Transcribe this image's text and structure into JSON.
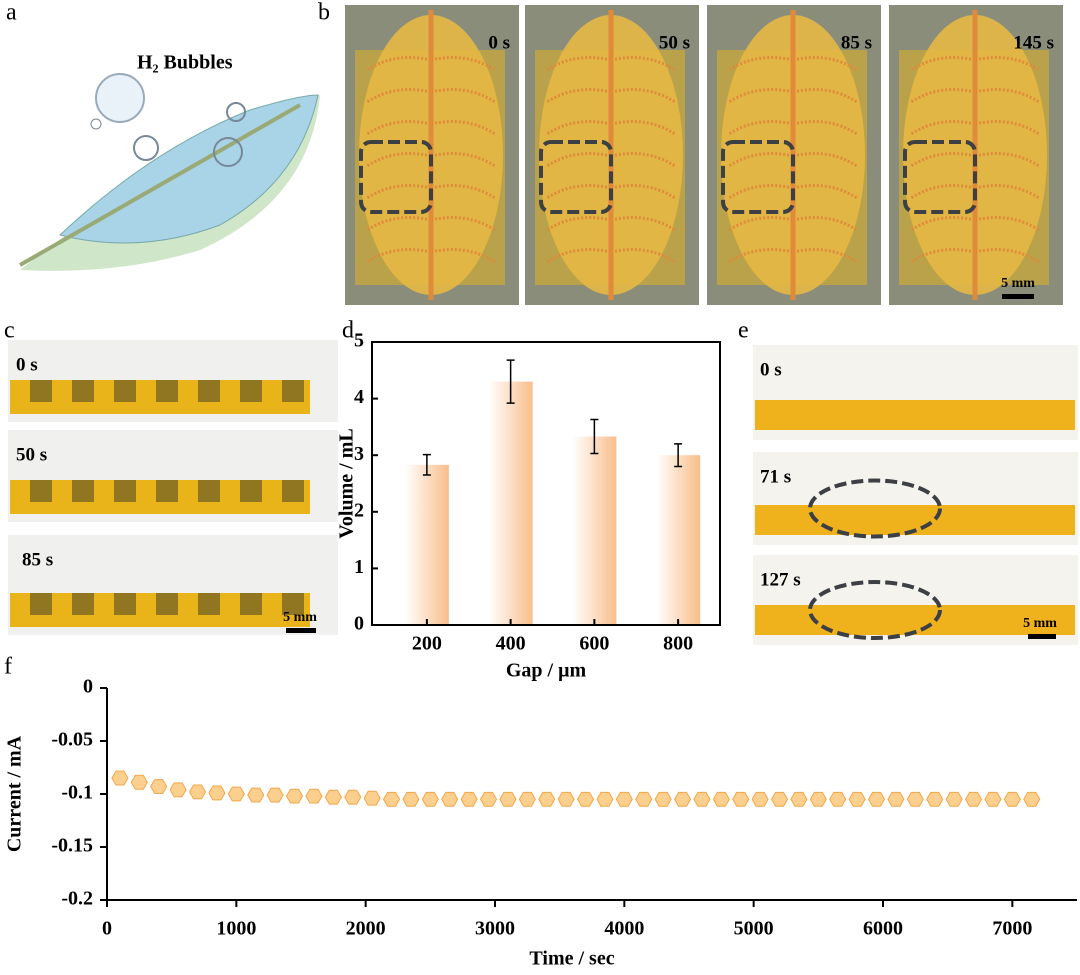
{
  "panel_labels": [
    "a",
    "b",
    "c",
    "d",
    "e",
    "f"
  ],
  "panel_a": {
    "title": "H₂ Bubbles"
  },
  "panel_b": {
    "times": [
      "0 s",
      "50 s",
      "85 s",
      "145 s"
    ],
    "scale": "5 mm"
  },
  "panel_c": {
    "times": [
      "0 s",
      "50 s",
      "85 s"
    ],
    "scale": "5 mm"
  },
  "panel_e": {
    "times": [
      "0 s",
      "71 s",
      "127 s"
    ],
    "scale": "5 mm"
  },
  "chart_data": [
    {
      "type": "bar",
      "categories": [
        "200",
        "400",
        "600",
        "800"
      ],
      "values": [
        2.83,
        4.3,
        3.33,
        3.0
      ],
      "errors": [
        0.18,
        0.38,
        0.3,
        0.2
      ],
      "color": "#f9be8a",
      "ylim": [
        0,
        5
      ],
      "yticks": [
        0,
        1,
        2,
        3,
        4,
        5
      ],
      "x_label": "Gap / μm",
      "y_label": "Volume / mL"
    },
    {
      "type": "scatter",
      "x": [
        100,
        250,
        400,
        550,
        700,
        850,
        1000,
        1150,
        1300,
        1450,
        1600,
        1750,
        1900,
        2050,
        2200,
        2350,
        2500,
        2650,
        2800,
        2950,
        3100,
        3250,
        3400,
        3550,
        3700,
        3850,
        4000,
        4150,
        4300,
        4450,
        4600,
        4750,
        4900,
        5050,
        5200,
        5350,
        5500,
        5650,
        5800,
        5950,
        6100,
        6250,
        6400,
        6550,
        6700,
        6850,
        7000,
        7150
      ],
      "values": [
        -0.085,
        -0.089,
        -0.093,
        -0.096,
        -0.098,
        -0.099,
        -0.1,
        -0.101,
        -0.101,
        -0.102,
        -0.102,
        -0.103,
        -0.103,
        -0.104,
        -0.105,
        -0.105,
        -0.105,
        -0.105,
        -0.105,
        -0.105,
        -0.105,
        -0.105,
        -0.105,
        -0.105,
        -0.105,
        -0.105,
        -0.105,
        -0.105,
        -0.105,
        -0.105,
        -0.105,
        -0.105,
        -0.105,
        -0.105,
        -0.105,
        -0.105,
        -0.105,
        -0.105,
        -0.105,
        -0.105,
        -0.105,
        -0.105,
        -0.105,
        -0.105,
        -0.105,
        -0.105,
        -0.105,
        -0.105
      ],
      "color": "#fbd08f",
      "xlim": [
        0,
        7500
      ],
      "xticks": [
        0,
        1000,
        2000,
        3000,
        4000,
        5000,
        6000,
        7000
      ],
      "ylim": [
        -0.2,
        0
      ],
      "yticks": [
        0,
        -0.05,
        -0.1,
        -0.15,
        -0.2
      ],
      "x_label": "Time / sec",
      "y_label": "Current / mA"
    }
  ]
}
